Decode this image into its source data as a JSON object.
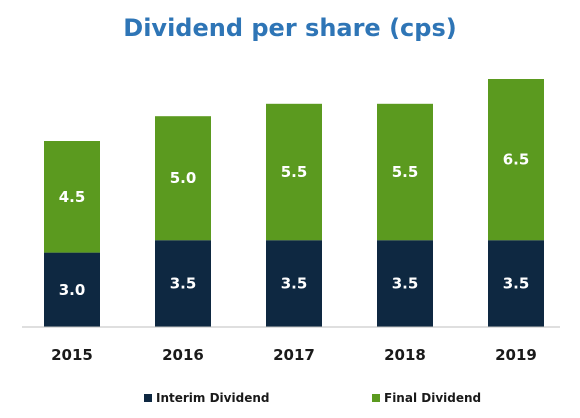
{
  "chart_data": {
    "type": "bar",
    "stacked": true,
    "title": "Dividend per share (cps)",
    "xlabel": "",
    "ylabel": "",
    "categories": [
      "2015",
      "2016",
      "2017",
      "2018",
      "2019"
    ],
    "series": [
      {
        "name": "Interim Dividend",
        "values": [
          3.0,
          3.5,
          3.5,
          3.5,
          3.5
        ],
        "labels": [
          "3.0",
          "3.5",
          "3.5",
          "3.5",
          "3.5"
        ],
        "color": "#0e2841"
      },
      {
        "name": "Final Dividend",
        "values": [
          4.5,
          5.0,
          5.5,
          5.5,
          6.5
        ],
        "labels": [
          "4.5",
          "5.0",
          "5.5",
          "5.5",
          "6.5"
        ],
        "color": "#5b9a1f"
      }
    ],
    "ylim": [
      0,
      10
    ],
    "grid": false,
    "legend_position": "bottom"
  },
  "colors": {
    "title": "#2e75b6",
    "axis": "#bfbfbf"
  }
}
